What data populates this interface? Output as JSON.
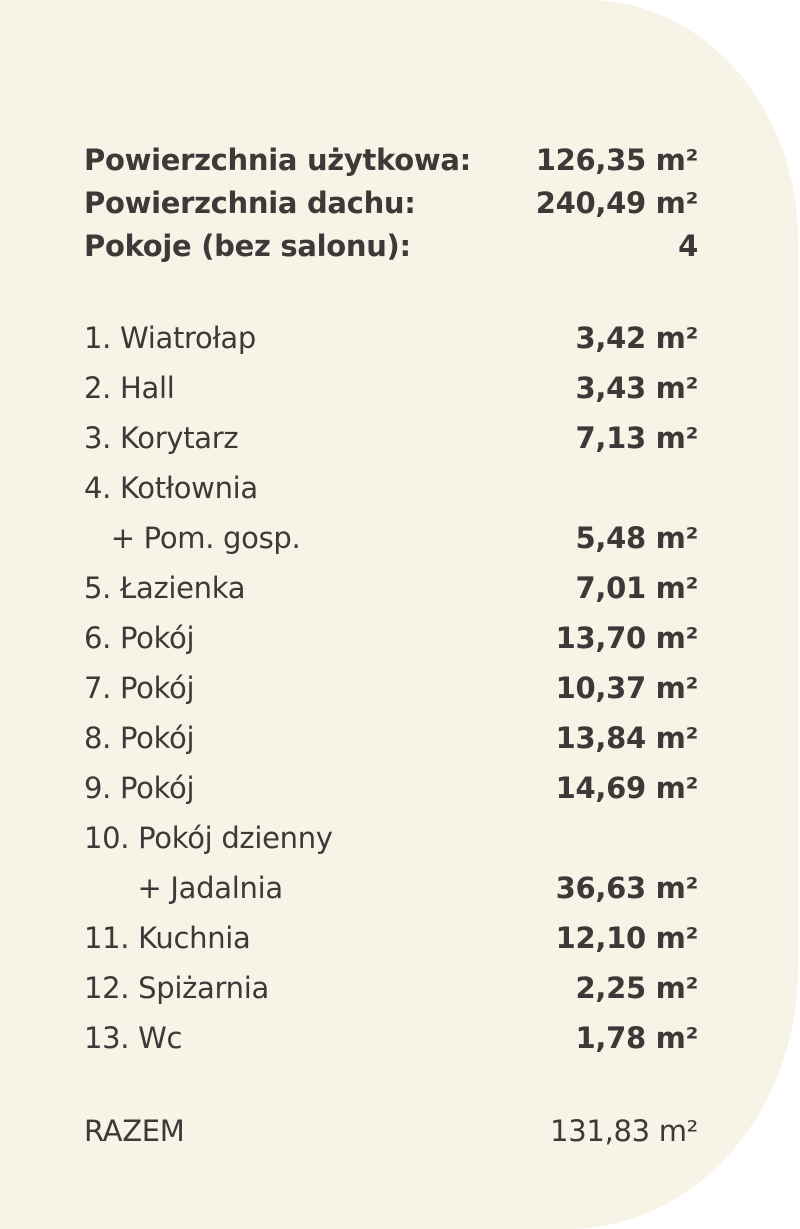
{
  "summary": [
    {
      "label": "Powierzchnia użytkowa:",
      "value": "126,35 m²"
    },
    {
      "label": "Powierzchnia dachu:",
      "value": "240,49 m²"
    },
    {
      "label": "Pokoje (bez salonu):",
      "value": "4"
    }
  ],
  "rooms": [
    {
      "label": "1. Wiatrołap",
      "value": "3,42 m²"
    },
    {
      "label": "2. Hall",
      "value": "3,43 m²"
    },
    {
      "label": "3. Korytarz",
      "value": "7,13 m²"
    },
    {
      "label": "4. Kotłownia",
      "value": ""
    },
    {
      "label": "   + Pom. gosp.",
      "value": "5,48 m²"
    },
    {
      "label": "5. Łazienka",
      "value": "7,01 m²"
    },
    {
      "label": "6. Pokój",
      "value": "13,70 m²"
    },
    {
      "label": "7. Pokój",
      "value": "10,37 m²"
    },
    {
      "label": "8. Pokój",
      "value": "13,84 m²"
    },
    {
      "label": "9. Pokój",
      "value": "14,69 m²"
    },
    {
      "label": "10. Pokój dzienny",
      "value": ""
    },
    {
      "label": "      + Jadalnia",
      "value": "36,63 m²"
    },
    {
      "label": "11. Kuchnia",
      "value": "12,10 m²"
    },
    {
      "label": "12. Spiżarnia",
      "value": "2,25 m²"
    },
    {
      "label": "13. Wc",
      "value": "1,78 m²"
    }
  ],
  "total": {
    "label": "RAZEM",
    "value": "131,83 m²"
  }
}
